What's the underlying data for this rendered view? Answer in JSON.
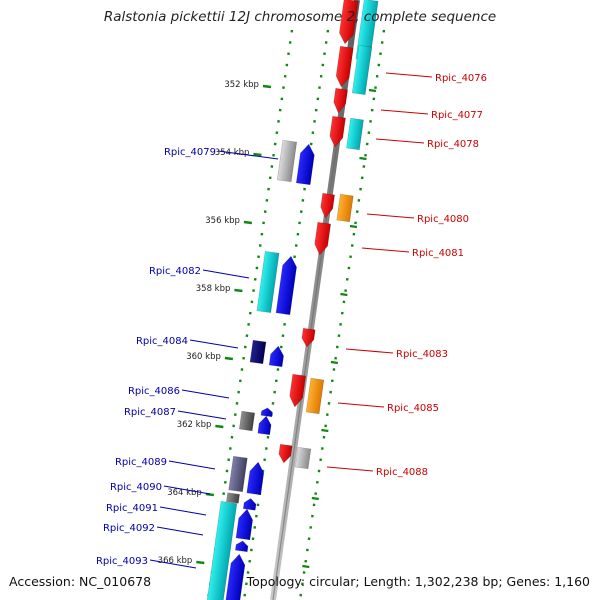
{
  "title": "Ralstonia pickettii 12J chromosome 2, complete sequence",
  "accession": "Accession: NC_010678",
  "topology": "Topology: circular; Length: 1,302,238 bp; Genes: 1,160",
  "colors": {
    "minus_strand_label": "#cc0000",
    "plus_strand_label": "#0000aa",
    "red_gene": "#ff0000",
    "blue_gene": "#0000ff",
    "cyan_gene": "#00e5e5",
    "orange_gene": "#ff9900",
    "grey_gene": "#b8b8b8",
    "navy_gene": "#000080",
    "slate_gene": "#606080",
    "tick_green": "#118811",
    "backbone": "#888888"
  },
  "kbp_ticks": [
    {
      "label": "352 kbp"
    },
    {
      "label": "354 kbp"
    },
    {
      "label": "356 kbp"
    },
    {
      "label": "358 kbp"
    },
    {
      "label": "360 kbp"
    },
    {
      "label": "362 kbp"
    },
    {
      "label": "364 kbp"
    },
    {
      "label": "366 kbp"
    }
  ],
  "right_labels": [
    {
      "text": "Rpic_4076"
    },
    {
      "text": "Rpic_4077"
    },
    {
      "text": "Rpic_4078"
    },
    {
      "text": "Rpic_4080"
    },
    {
      "text": "Rpic_4081"
    },
    {
      "text": "Rpic_4083"
    },
    {
      "text": "Rpic_4085"
    },
    {
      "text": "Rpic_4088"
    }
  ],
  "left_labels": [
    {
      "text": "Rpic_4079"
    },
    {
      "text": "Rpic_4082"
    },
    {
      "text": "Rpic_4084"
    },
    {
      "text": "Rpic_4086"
    },
    {
      "text": "Rpic_4087"
    },
    {
      "text": "Rpic_4089"
    },
    {
      "text": "Rpic_4090"
    },
    {
      "text": "Rpic_4091"
    },
    {
      "text": "Rpic_4092"
    },
    {
      "text": "Rpic_4093"
    }
  ]
}
